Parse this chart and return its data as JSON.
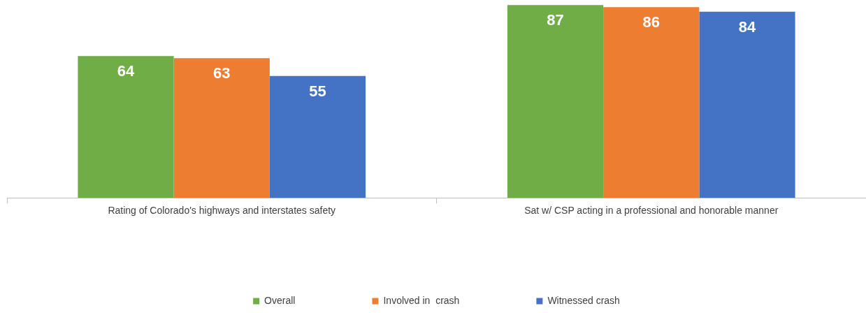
{
  "chart_data": {
    "type": "bar",
    "categories": [
      "Rating of Colorado's highways and interstates safety",
      "Sat w/ CSP acting in a professional and honorable manner"
    ],
    "series": [
      {
        "name": "Overall",
        "color": "#70ad47",
        "values": [
          64,
          87
        ]
      },
      {
        "name": "Involved in  crash",
        "color": "#ed7d31",
        "values": [
          63,
          86
        ]
      },
      {
        "name": "Witnessed crash",
        "color": "#4472c4",
        "values": [
          55,
          84
        ]
      }
    ],
    "ylim": [
      0,
      88
    ],
    "data_labels": true,
    "legend": "bottom",
    "grid": false,
    "tick_labels": "x"
  }
}
